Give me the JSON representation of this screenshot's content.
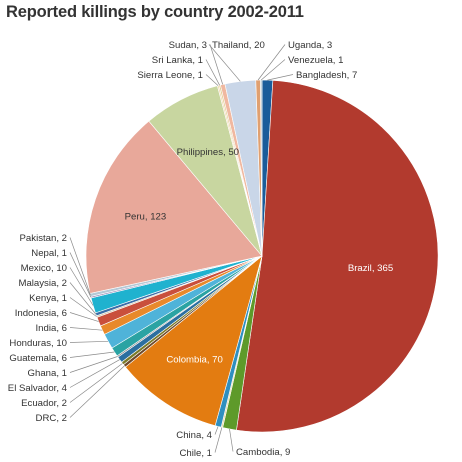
{
  "chart_data": {
    "type": "pie",
    "title": "Reported killings by country 2002-2011",
    "label_format": "{name}, {value}",
    "slices": [
      {
        "name": "Bangladesh",
        "value": 7,
        "color": "#1a5c9a"
      },
      {
        "name": "Brazil",
        "value": 365,
        "color": "#b23a2e"
      },
      {
        "name": "Cambodia",
        "value": 9,
        "color": "#5e9a2a"
      },
      {
        "name": "Chile",
        "value": 1,
        "color": "#e8d8a0"
      },
      {
        "name": "China",
        "value": 4,
        "color": "#2f8fbf"
      },
      {
        "name": "Colombia",
        "value": 70,
        "color": "#e37c11"
      },
      {
        "name": "DRC",
        "value": 2,
        "color": "#6f4a2b"
      },
      {
        "name": "Ecuador",
        "value": 2,
        "color": "#7b7b2a"
      },
      {
        "name": "El Salvador",
        "value": 4,
        "color": "#2c6fa0"
      },
      {
        "name": "Ghana",
        "value": 1,
        "color": "#8a8a8a"
      },
      {
        "name": "Guatemala",
        "value": 6,
        "color": "#2aa3a3"
      },
      {
        "name": "Honduras",
        "value": 10,
        "color": "#4fb3d9"
      },
      {
        "name": "India",
        "value": 6,
        "color": "#e8892b"
      },
      {
        "name": "Indonesia",
        "value": 6,
        "color": "#c94f3c"
      },
      {
        "name": "Kenya",
        "value": 1,
        "color": "#d1c4a6"
      },
      {
        "name": "Malaysia",
        "value": 2,
        "color": "#3a6ea8"
      },
      {
        "name": "Mexico",
        "value": 10,
        "color": "#1fb2cf"
      },
      {
        "name": "Nepal",
        "value": 1,
        "color": "#9b8ab8"
      },
      {
        "name": "Pakistan",
        "value": 2,
        "color": "#b5c9d6"
      },
      {
        "name": "Peru",
        "value": 123,
        "color": "#e8a89a"
      },
      {
        "name": "Philippines",
        "value": 50,
        "color": "#c8d6a0"
      },
      {
        "name": "Sierra Leone",
        "value": 1,
        "color": "#f2d8b0"
      },
      {
        "name": "Sri Lanka",
        "value": 1,
        "color": "#dfc98c"
      },
      {
        "name": "Sudan",
        "value": 3,
        "color": "#f0b8a0"
      },
      {
        "name": "Thailand",
        "value": 20,
        "color": "#c9d6e8"
      },
      {
        "name": "Uganda",
        "value": 3,
        "color": "#e0a070"
      },
      {
        "name": "Venezuela",
        "value": 1,
        "color": "#a8c0d0"
      }
    ],
    "inside_labels": [
      "Brazil",
      "Colombia",
      "Peru",
      "Philippines"
    ],
    "legend": "none"
  }
}
